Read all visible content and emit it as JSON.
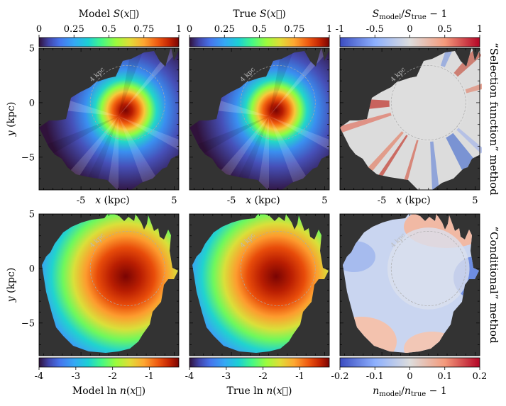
{
  "chart_data": {
    "type": "heatmap",
    "description_free": true,
    "colorbars": {
      "top": [
        {
          "label": "Model S(⃗x)",
          "label_parts": [
            "Model ",
            "S",
            "(",
            "x",
            ")"
          ],
          "ticks": [
            "0",
            "0.25",
            "0.5",
            "0.75",
            "1"
          ],
          "tick_values": [
            0,
            0.25,
            0.5,
            0.75,
            1
          ],
          "range": [
            0,
            1
          ],
          "cmap": "turbo"
        },
        {
          "label": "True S(⃗x)",
          "label_parts": [
            "True ",
            "S",
            "(",
            "x",
            ")"
          ],
          "ticks": [
            "0",
            "0.25",
            "0.5",
            "0.75",
            "1"
          ],
          "tick_values": [
            0,
            0.25,
            0.5,
            0.75,
            1
          ],
          "range": [
            0,
            1
          ],
          "cmap": "turbo"
        },
        {
          "label": "S_model/S_true − 1",
          "label_parts": [
            "S",
            "model",
            "/",
            "S",
            "true",
            " − 1"
          ],
          "ticks": [
            "-1",
            "-0.5",
            "0",
            "0.5",
            "1"
          ],
          "tick_values": [
            -1,
            -0.5,
            0,
            0.5,
            1
          ],
          "range": [
            -1,
            1
          ],
          "cmap": "coolwarm"
        }
      ],
      "bottom": [
        {
          "label": "Model ln n(⃗x)",
          "label_parts": [
            "Model ln ",
            "n",
            "(",
            "x",
            ")"
          ],
          "ticks": [
            "-4",
            "-3",
            "-2",
            "-1"
          ],
          "tick_values": [
            -4,
            -3,
            -2,
            -1
          ],
          "range": [
            -4,
            -0.2
          ],
          "cmap": "turbo"
        },
        {
          "label": "True ln n(⃗x)",
          "label_parts": [
            "True ln ",
            "n",
            "(",
            "x",
            ")"
          ],
          "ticks": [
            "-4",
            "-3",
            "-2",
            "-1"
          ],
          "tick_values": [
            -4,
            -3,
            -2,
            -1
          ],
          "range": [
            -4,
            -0.2
          ],
          "cmap": "turbo"
        },
        {
          "label": "n_model/n_true − 1",
          "label_parts": [
            "n",
            "model",
            "/",
            "n",
            "true",
            " − 1"
          ],
          "ticks": [
            "-0.2",
            "-0.1",
            "0",
            "0.1",
            "0.2"
          ],
          "tick_values": [
            -0.2,
            -0.1,
            0,
            0.1,
            0.2
          ],
          "range": [
            -0.2,
            0.2
          ],
          "cmap": "coolwarm"
        }
      ]
    },
    "rows": [
      {
        "title": "“Selection function” method",
        "panels": [
          "model_S",
          "true_S",
          "S_ratio"
        ]
      },
      {
        "title": "“Conditional” method",
        "panels": [
          "model_lnn",
          "true_lnn",
          "n_ratio"
        ]
      }
    ],
    "xlabel": "x (kpc)",
    "ylabel": "y (kpc)",
    "x_ticks": [
      "-5",
      "5"
    ],
    "x_tick_values": [
      -5,
      5
    ],
    "y_ticks": [
      "5",
      "0",
      "−5"
    ],
    "y_tick_values": [
      5,
      0,
      -5
    ],
    "xlim": [
      -9.5,
      5.5
    ],
    "ylim": [
      -8,
      5
    ],
    "annotation": "4 kpc",
    "circle_radius_kpc": 4,
    "background_color": "#333333"
  }
}
